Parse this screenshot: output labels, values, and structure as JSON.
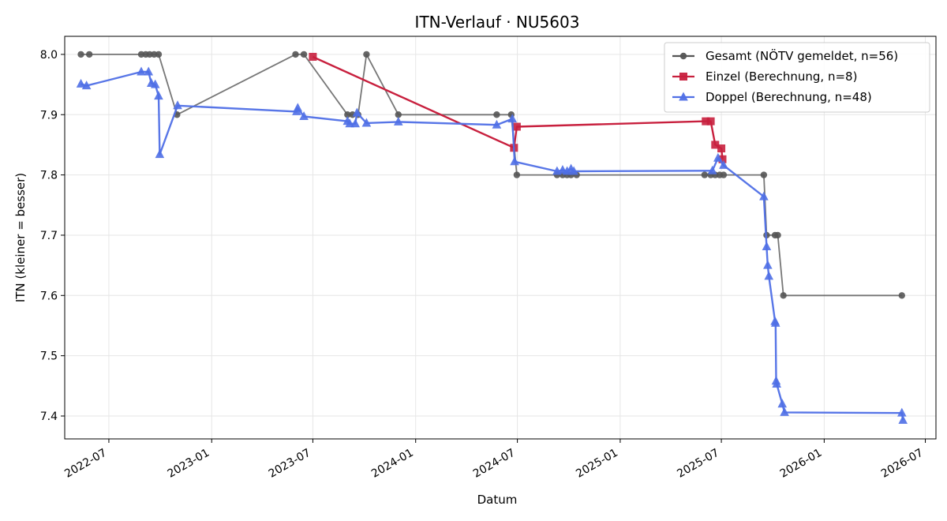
{
  "chart_data": {
    "type": "line",
    "title": "ITN-Verlauf · NU5603",
    "xlabel": "Datum",
    "ylabel": "ITN  (kleiner = besser)",
    "x_axis": "date",
    "xlim": [
      "2022-04-13",
      "2026-07-20"
    ],
    "ylim": [
      7.362,
      8.03
    ],
    "x_ticks": [
      "2022-07",
      "2023-01",
      "2023-07",
      "2024-01",
      "2024-07",
      "2025-01",
      "2025-07",
      "2026-01",
      "2026-07"
    ],
    "y_ticks": [
      "7.4",
      "7.5",
      "7.6",
      "7.7",
      "7.8",
      "7.9",
      "8.0"
    ],
    "grid": true,
    "legend": "top-right",
    "series": [
      {
        "name": "Gesamt (NÖTV gemeldet, n=56)",
        "color": "#555555",
        "marker": "circle",
        "points": [
          [
            "2022-05-12",
            8.0
          ],
          [
            "2022-05-27",
            8.0
          ],
          [
            "2022-08-28",
            8.0
          ],
          [
            "2022-09-05",
            8.0
          ],
          [
            "2022-09-12",
            8.0
          ],
          [
            "2022-09-20",
            8.0
          ],
          [
            "2022-09-28",
            8.0
          ],
          [
            "2022-10-31",
            7.9
          ],
          [
            "2023-05-31",
            8.0
          ],
          [
            "2023-06-15",
            8.0
          ],
          [
            "2023-09-01",
            7.9
          ],
          [
            "2023-09-10",
            7.9
          ],
          [
            "2023-09-20",
            7.9
          ],
          [
            "2023-10-05",
            8.0
          ],
          [
            "2023-12-01",
            7.9
          ],
          [
            "2024-05-25",
            7.9
          ],
          [
            "2024-06-20",
            7.9
          ],
          [
            "2024-06-30",
            7.8
          ],
          [
            "2024-09-10",
            7.8
          ],
          [
            "2024-09-20",
            7.8
          ],
          [
            "2024-09-28",
            7.8
          ],
          [
            "2024-10-05",
            7.8
          ],
          [
            "2024-10-15",
            7.8
          ],
          [
            "2025-06-01",
            7.8
          ],
          [
            "2025-06-12",
            7.8
          ],
          [
            "2025-06-20",
            7.8
          ],
          [
            "2025-06-28",
            7.8
          ],
          [
            "2025-07-05",
            7.8
          ],
          [
            "2025-09-15",
            7.8
          ],
          [
            "2025-09-20",
            7.7
          ],
          [
            "2025-10-05",
            7.7
          ],
          [
            "2025-10-10",
            7.7
          ],
          [
            "2025-10-20",
            7.6
          ],
          [
            "2026-05-20",
            7.6
          ]
        ]
      },
      {
        "name": "Einzel (Berechnung, n=8)",
        "color": "#c8203e",
        "marker": "square",
        "points": [
          [
            "2023-07-01",
            7.996
          ],
          [
            "2024-06-25",
            7.845
          ],
          [
            "2024-06-30",
            7.88
          ],
          [
            "2025-06-03",
            7.889
          ],
          [
            "2025-06-12",
            7.889
          ],
          [
            "2025-06-20",
            7.85
          ],
          [
            "2025-07-01",
            7.844
          ],
          [
            "2025-07-03",
            7.826
          ]
        ]
      },
      {
        "name": "Doppel (Berechnung, n=48)",
        "color": "#4f6fe6",
        "marker": "triangle",
        "points": [
          [
            "2022-05-12",
            7.951
          ],
          [
            "2022-05-22",
            7.948
          ],
          [
            "2022-08-28",
            7.971
          ],
          [
            "2022-09-10",
            7.971
          ],
          [
            "2022-09-15",
            7.952
          ],
          [
            "2022-09-22",
            7.95
          ],
          [
            "2022-09-28",
            7.931
          ],
          [
            "2022-09-30",
            7.834
          ],
          [
            "2022-11-01",
            7.915
          ],
          [
            "2023-06-02",
            7.905
          ],
          [
            "2023-06-04",
            7.911
          ],
          [
            "2023-06-15",
            7.897
          ],
          [
            "2023-09-01",
            7.889
          ],
          [
            "2023-09-05",
            7.885
          ],
          [
            "2023-09-15",
            7.885
          ],
          [
            "2023-09-18",
            7.903
          ],
          [
            "2023-10-05",
            7.886
          ],
          [
            "2023-12-01",
            7.888
          ],
          [
            "2024-05-25",
            7.883
          ],
          [
            "2024-06-22",
            7.893
          ],
          [
            "2024-06-26",
            7.822
          ],
          [
            "2024-09-10",
            7.806
          ],
          [
            "2024-09-20",
            7.808
          ],
          [
            "2024-09-28",
            7.806
          ],
          [
            "2024-10-05",
            7.81
          ],
          [
            "2024-10-10",
            7.806
          ],
          [
            "2025-06-15",
            7.807
          ],
          [
            "2025-06-25",
            7.828
          ],
          [
            "2025-07-05",
            7.816
          ],
          [
            "2025-09-15",
            7.764
          ],
          [
            "2025-09-20",
            7.681
          ],
          [
            "2025-09-22",
            7.65
          ],
          [
            "2025-09-24",
            7.632
          ],
          [
            "2025-10-05",
            7.557
          ],
          [
            "2025-10-06",
            7.554
          ],
          [
            "2025-10-07",
            7.458
          ],
          [
            "2025-10-08",
            7.453
          ],
          [
            "2025-10-18",
            7.42
          ],
          [
            "2025-10-22",
            7.406
          ],
          [
            "2026-05-20",
            7.405
          ],
          [
            "2026-05-22",
            7.393
          ]
        ]
      }
    ]
  }
}
